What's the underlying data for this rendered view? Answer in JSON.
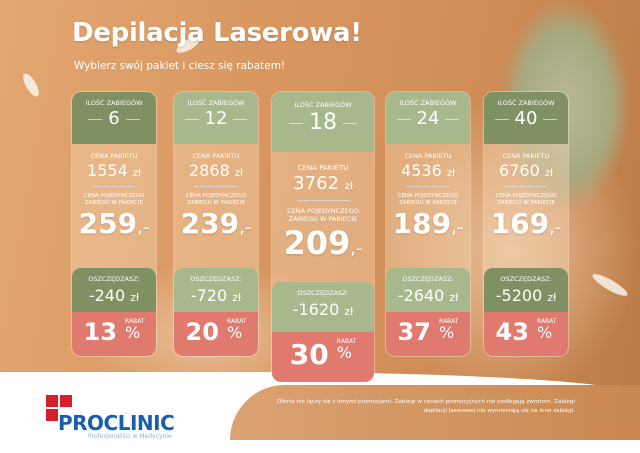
{
  "title": "Depilacja Laserowa!",
  "subtitle": "Wybierz swój pakiet i ciesz się rabatem!",
  "colors": {
    "green_dark": "#7f9163",
    "green_light": "#a7b88c",
    "red": "#e07a6e",
    "brand_blue": "#1a5fae",
    "brand_red": "#d61f2b"
  },
  "labels": {
    "count": "ILOŚĆ ZABIEGÓW",
    "package_price": "CENA PAKIETU",
    "single_price": "CENA POJEDYNCZEGO ZABIEGU W PAKIECIE",
    "save": "OSZCZĘDZASZ:",
    "discount": "RABAT",
    "currency": "zł",
    "dash": ",-",
    "percent": "%"
  },
  "packages": [
    {
      "count": "6",
      "package_price": "1554",
      "single_price": "259",
      "save": "-240",
      "discount": "13"
    },
    {
      "count": "12",
      "package_price": "2868",
      "single_price": "239",
      "save": "-720",
      "discount": "20"
    },
    {
      "count": "18",
      "package_price": "3762",
      "single_price": "209",
      "save": "-1620",
      "discount": "30"
    },
    {
      "count": "24",
      "package_price": "4536",
      "single_price": "189",
      "save": "-2640",
      "discount": "37"
    },
    {
      "count": "40",
      "package_price": "6760",
      "single_price": "169",
      "save": "-5200",
      "discount": "43"
    }
  ],
  "logo": {
    "name": "PROCLINIC",
    "tagline": "Profesjonaliści w Medycynie"
  },
  "legal": "Oferta nie łączy się z innymi promocjami. Zabiegi w cenach promocyjnych nie podlegają zwrotom. Zabiegi depilacji laserowej nie wymieniają się na inne zabiegi."
}
